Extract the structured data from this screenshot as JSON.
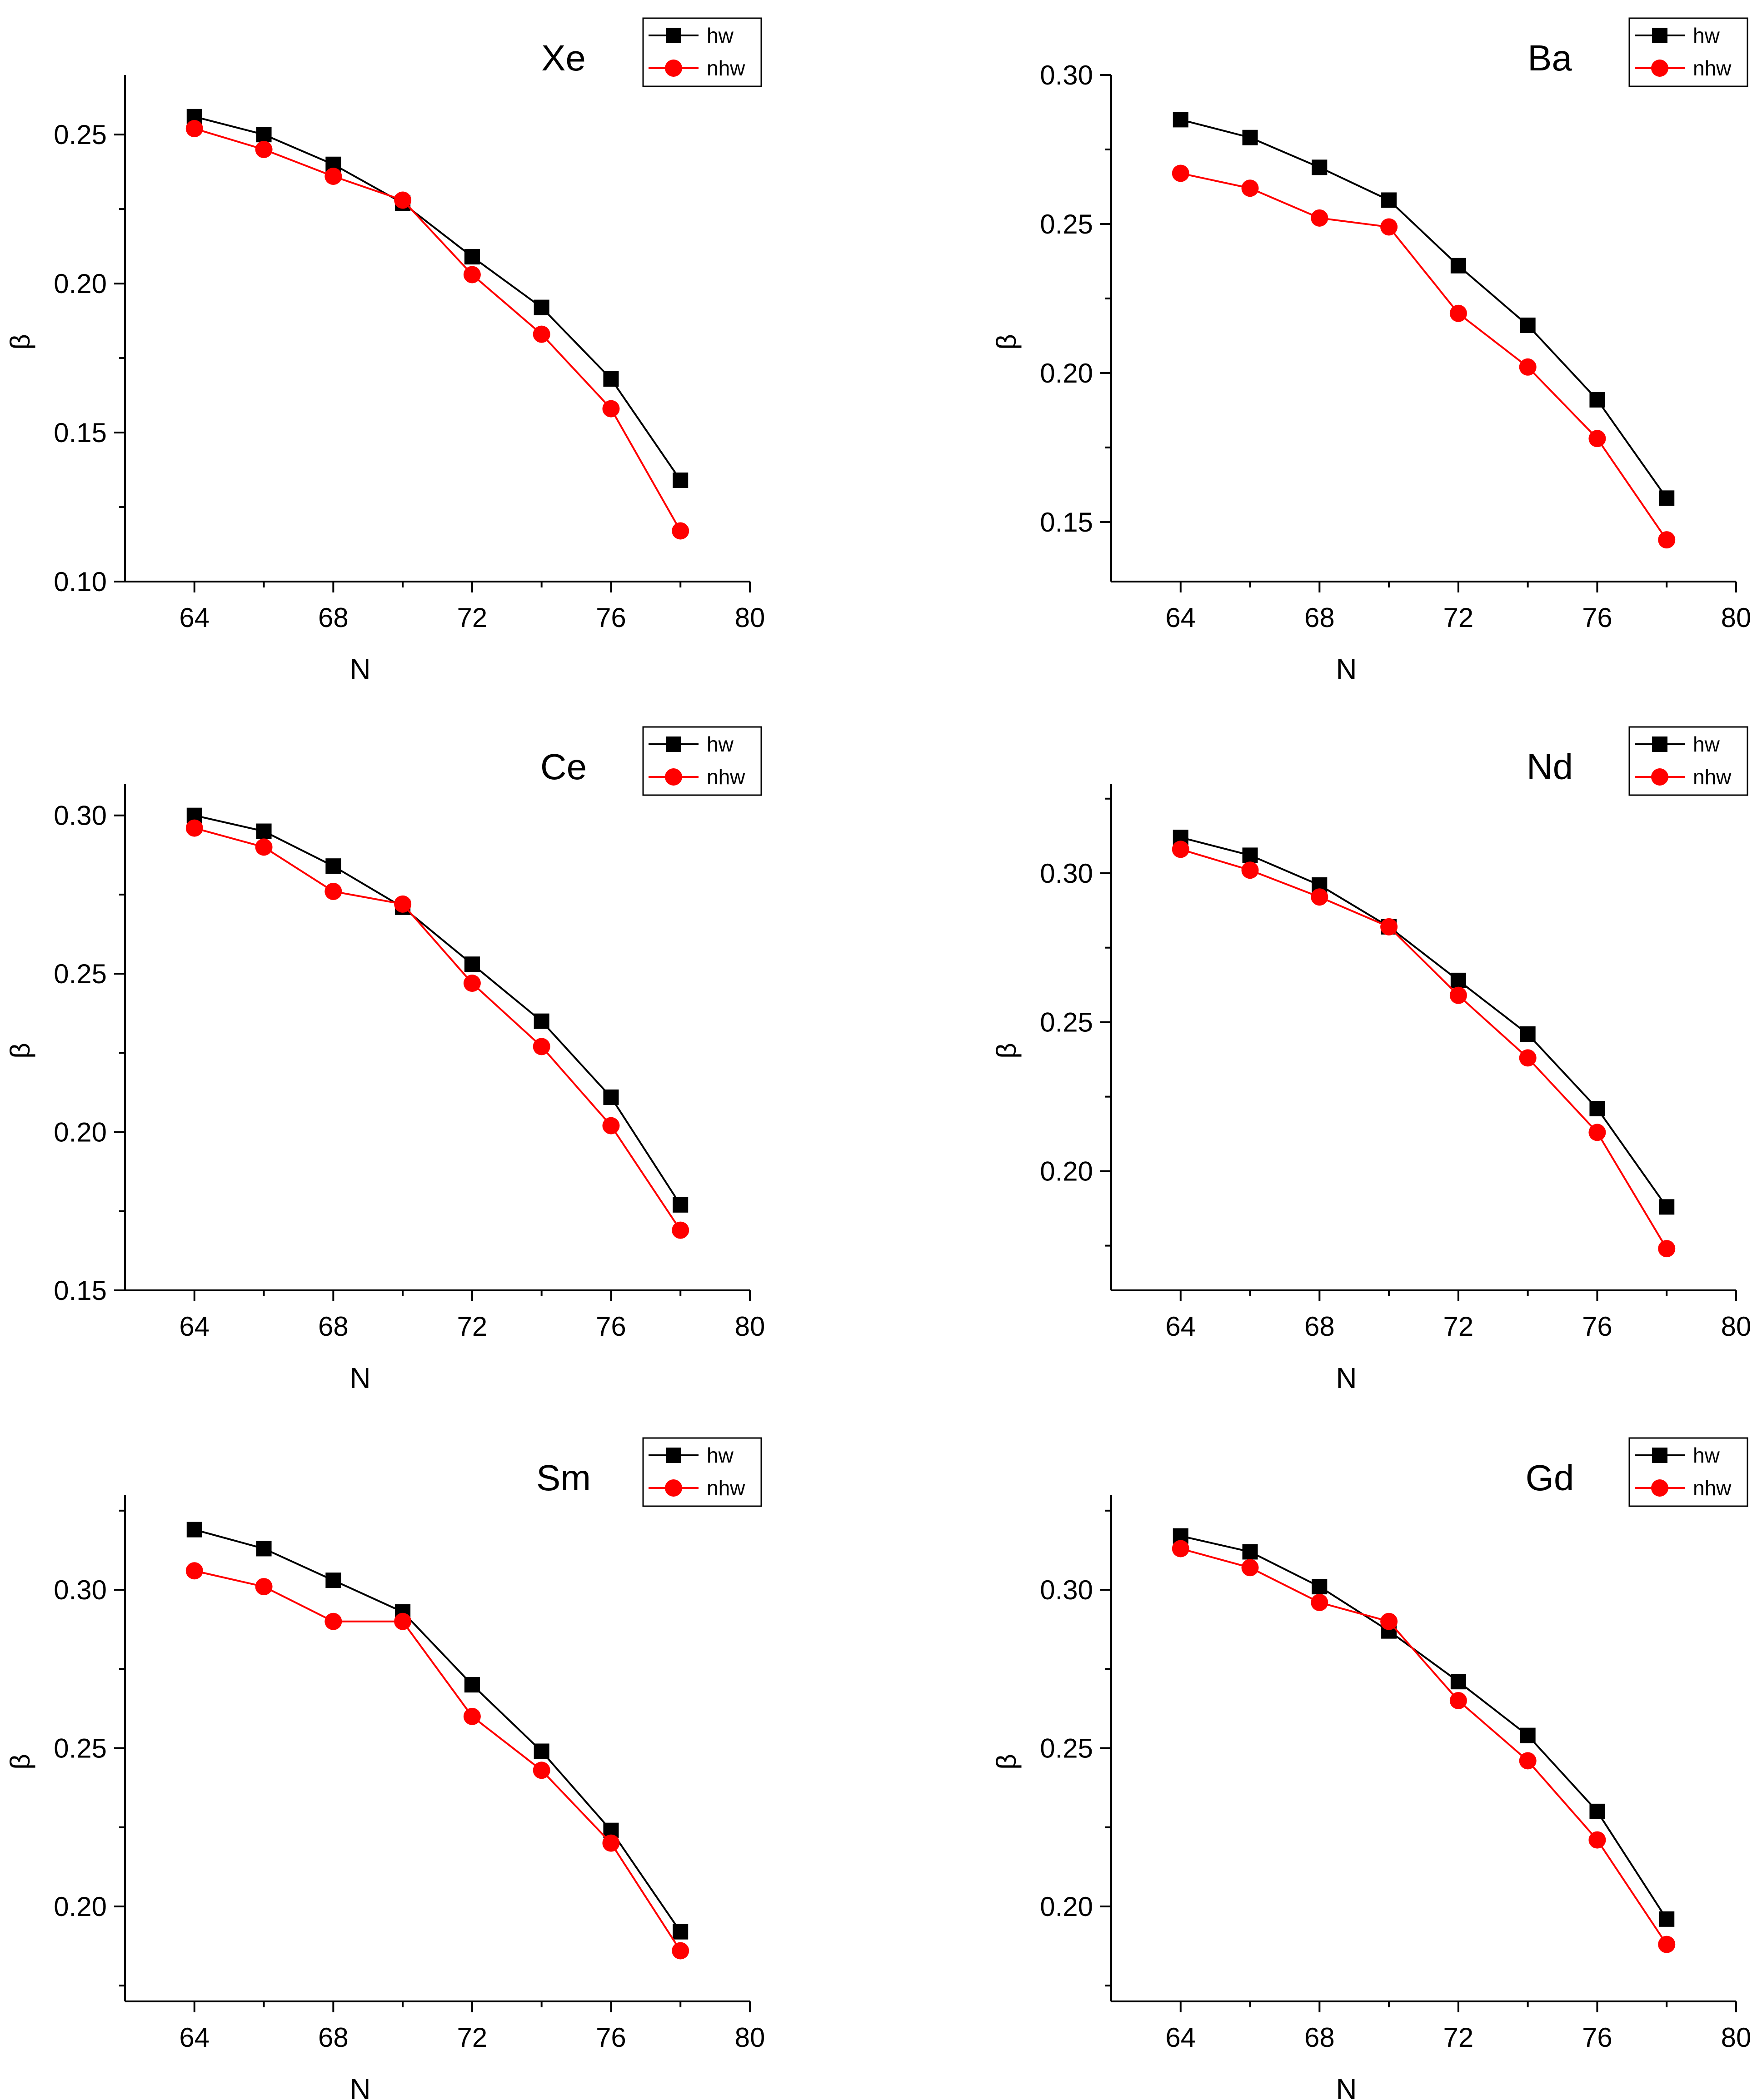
{
  "figure": {
    "xlabel": "N",
    "ylabel": "β",
    "legend": [
      "hw",
      "nhw"
    ]
  },
  "colors": {
    "hw": "#000000",
    "nhw": "#ff0000"
  },
  "chart_data": [
    {
      "type": "line",
      "title": "Xe",
      "xlabel": "N",
      "ylabel": "β",
      "x": [
        64,
        66,
        68,
        70,
        72,
        74,
        76,
        78
      ],
      "xlim": [
        62,
        80
      ],
      "ylim": [
        0.1,
        0.27
      ],
      "xticks": [
        "64",
        "68",
        "72",
        "76",
        "80"
      ],
      "yticks": [
        "0.10",
        "0.15",
        "0.20",
        "0.25"
      ],
      "legend": "top-right",
      "series": [
        {
          "name": "hw",
          "values": [
            0.256,
            0.25,
            0.24,
            0.227,
            0.209,
            0.192,
            0.168,
            0.134
          ]
        },
        {
          "name": "nhw",
          "values": [
            0.252,
            0.245,
            0.236,
            0.228,
            0.203,
            0.183,
            0.158,
            0.117
          ]
        }
      ]
    },
    {
      "type": "line",
      "title": "Ba",
      "xlabel": "N",
      "ylabel": "β",
      "x": [
        64,
        66,
        68,
        70,
        72,
        74,
        76,
        78
      ],
      "xlim": [
        62,
        80
      ],
      "ylim": [
        0.13,
        0.3
      ],
      "xticks": [
        "64",
        "68",
        "72",
        "76",
        "80"
      ],
      "yticks": [
        "0.15",
        "0.20",
        "0.25",
        "0.30"
      ],
      "legend": "top-right",
      "series": [
        {
          "name": "hw",
          "values": [
            0.285,
            0.279,
            0.269,
            0.258,
            0.236,
            0.216,
            0.191,
            0.158
          ]
        },
        {
          "name": "nhw",
          "values": [
            0.267,
            0.262,
            0.252,
            0.249,
            0.22,
            0.202,
            0.178,
            0.144
          ]
        }
      ]
    },
    {
      "type": "line",
      "title": "Ce",
      "xlabel": "N",
      "ylabel": "β",
      "x": [
        64,
        66,
        68,
        70,
        72,
        74,
        76,
        78
      ],
      "xlim": [
        62,
        80
      ],
      "ylim": [
        0.15,
        0.31
      ],
      "xticks": [
        "64",
        "68",
        "72",
        "76",
        "80"
      ],
      "yticks": [
        "0.15",
        "0.20",
        "0.25",
        "0.30"
      ],
      "legend": "top-right",
      "series": [
        {
          "name": "hw",
          "values": [
            0.3,
            0.295,
            0.284,
            0.271,
            0.253,
            0.235,
            0.211,
            0.177
          ]
        },
        {
          "name": "nhw",
          "values": [
            0.296,
            0.29,
            0.276,
            0.272,
            0.247,
            0.227,
            0.202,
            0.169
          ]
        }
      ]
    },
    {
      "type": "line",
      "title": "Nd",
      "xlabel": "N",
      "ylabel": "β",
      "x": [
        64,
        66,
        68,
        70,
        72,
        74,
        76,
        78
      ],
      "xlim": [
        62,
        80
      ],
      "ylim": [
        0.16,
        0.33
      ],
      "xticks": [
        "64",
        "68",
        "72",
        "76",
        "80"
      ],
      "yticks": [
        "0.20",
        "0.25",
        "0.30"
      ],
      "legend": "top-right",
      "series": [
        {
          "name": "hw",
          "values": [
            0.312,
            0.306,
            0.296,
            0.282,
            0.264,
            0.246,
            0.221,
            0.188
          ]
        },
        {
          "name": "nhw",
          "values": [
            0.308,
            0.301,
            0.292,
            0.282,
            0.259,
            0.238,
            0.213,
            0.174
          ]
        }
      ]
    },
    {
      "type": "line",
      "title": "Sm",
      "xlabel": "N",
      "ylabel": "β",
      "x": [
        64,
        66,
        68,
        70,
        72,
        74,
        76,
        78
      ],
      "xlim": [
        62,
        80
      ],
      "ylim": [
        0.17,
        0.33
      ],
      "xticks": [
        "64",
        "68",
        "72",
        "76",
        "80"
      ],
      "yticks": [
        "0.20",
        "0.25",
        "0.30"
      ],
      "legend": "top-right",
      "series": [
        {
          "name": "hw",
          "values": [
            0.319,
            0.313,
            0.303,
            0.293,
            0.27,
            0.249,
            0.224,
            0.192
          ]
        },
        {
          "name": "nhw",
          "values": [
            0.306,
            0.301,
            0.29,
            0.29,
            0.26,
            0.243,
            0.22,
            0.186
          ]
        }
      ]
    },
    {
      "type": "line",
      "title": "Gd",
      "xlabel": "N",
      "ylabel": "β",
      "x": [
        64,
        66,
        68,
        70,
        72,
        74,
        76,
        78
      ],
      "xlim": [
        62,
        80
      ],
      "ylim": [
        0.17,
        0.33
      ],
      "xticks": [
        "64",
        "68",
        "72",
        "76",
        "80"
      ],
      "yticks": [
        "0.20",
        "0.25",
        "0.30"
      ],
      "legend": "top-right",
      "series": [
        {
          "name": "hw",
          "values": [
            0.317,
            0.312,
            0.301,
            0.287,
            0.271,
            0.254,
            0.23,
            0.196
          ]
        },
        {
          "name": "nhw",
          "values": [
            0.313,
            0.307,
            0.296,
            0.29,
            0.265,
            0.246,
            0.221,
            0.188
          ]
        }
      ]
    }
  ]
}
